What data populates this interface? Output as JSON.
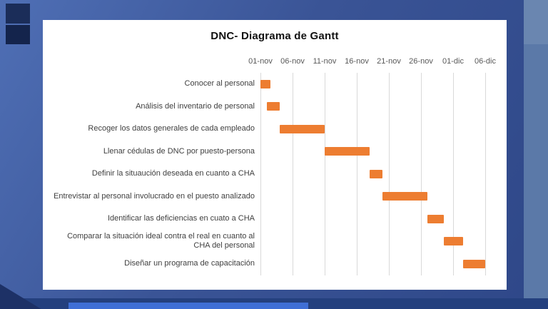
{
  "slide": {
    "panel_color": "#FFFFFF",
    "grid_color": "#D9D9D9",
    "accent_color": "#ED7D31"
  },
  "chart_data": {
    "type": "bar",
    "subtype": "gantt",
    "title": "DNC- Diagrama de Gantt",
    "axis_ticks": [
      "01-nov",
      "06-nov",
      "11-nov",
      "16-nov",
      "21-nov",
      "26-nov",
      "01-dic",
      "06-dic"
    ],
    "x_range_days": [
      0,
      35
    ],
    "tick_interval_days": 5,
    "bar_color": "#ED7D31",
    "grid": true,
    "legend": false,
    "tasks": [
      {
        "label": "Conocer al personal",
        "start": 0,
        "duration": 1.5
      },
      {
        "label": "Análisis del inventario de personal",
        "start": 1,
        "duration": 2
      },
      {
        "label": "Recoger los datos generales de cada empleado",
        "start": 3,
        "duration": 7
      },
      {
        "label": "Llenar cédulas de DNC por puesto-persona",
        "start": 10,
        "duration": 7
      },
      {
        "label": "Definir la situaución deseada en cuanto a CHA",
        "start": 17,
        "duration": 2
      },
      {
        "label": "Entrevistar al personal involucrado en el puesto analizado",
        "start": 19,
        "duration": 7
      },
      {
        "label": "Identificar las deficiencias en cuato a CHA",
        "start": 26,
        "duration": 2.5
      },
      {
        "label": "Comparar la situación ideal contra el real en cuanto al CHA del personal",
        "start": 28.5,
        "duration": 3
      },
      {
        "label": "Diseñar un programa de capacitación",
        "start": 31.5,
        "duration": 3.5
      }
    ]
  }
}
